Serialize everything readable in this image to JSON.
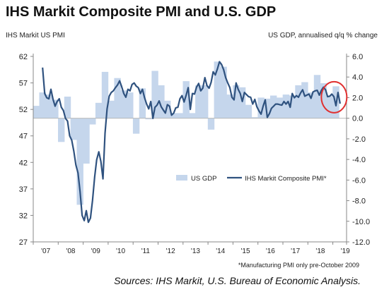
{
  "title": "IHS Markit Composite PMI and U.S. GDP",
  "left_axis_label": "IHS Markit US PMI",
  "right_axis_label": "US GDP, annualised q/q % change",
  "footnote": "*Manufacturing PMI only pre-October 2009",
  "source": "Sources: IHS Markit, U.S. Bureau of Economic Analysis.",
  "colors": {
    "gdp_bar": "#c5d6ec",
    "pmi_line": "#2f527f",
    "highlight_circle": "#e03030",
    "axis": "#888888"
  },
  "chart_data": {
    "type": "bar+line",
    "x_ticks": [
      "'07",
      "'08",
      "'09",
      "'10",
      "'11",
      "'12",
      "'13",
      "'14",
      "'15",
      "'16",
      "'17",
      "'18",
      "'19"
    ],
    "y_left": {
      "label": "IHS Markit US PMI",
      "ticks": [
        "27",
        "32",
        "37",
        "42",
        "47",
        "52",
        "57",
        "62"
      ],
      "range": [
        27,
        62
      ]
    },
    "y_right": {
      "label": "US GDP, annualised q/q % change",
      "ticks": [
        "-12.0",
        "-10.0",
        "-8.0",
        "-6.0",
        "-4.0",
        "-2.0",
        "0.0",
        "2.0",
        "4.0",
        "6.0"
      ],
      "range": [
        -12,
        6
      ]
    },
    "legend": [
      "US GDP",
      "IHS Markit Composite PMI*"
    ],
    "series": [
      {
        "name": "US GDP",
        "type": "bar",
        "axis": "right",
        "x": [
          2007.125,
          2007.375,
          2007.625,
          2007.875,
          2008.125,
          2008.375,
          2008.625,
          2008.875,
          2009.125,
          2009.375,
          2009.625,
          2009.875,
          2010.125,
          2010.375,
          2010.625,
          2010.875,
          2011.125,
          2011.375,
          2011.625,
          2011.875,
          2012.125,
          2012.375,
          2012.625,
          2012.875,
          2013.125,
          2013.375,
          2013.625,
          2013.875,
          2014.125,
          2014.375,
          2014.625,
          2014.875,
          2015.125,
          2015.375,
          2015.625,
          2015.875,
          2016.125,
          2016.375,
          2016.625,
          2016.875,
          2017.125,
          2017.375,
          2017.625,
          2017.875,
          2018.125,
          2018.375,
          2018.625,
          2018.875,
          2019.125
        ],
        "values": [
          1.2,
          2.5,
          2.3,
          1.8,
          -2.3,
          2.1,
          -2.1,
          -8.4,
          -4.4,
          -0.6,
          1.5,
          4.5,
          1.7,
          3.9,
          2.7,
          2.5,
          -1.5,
          2.9,
          -0.1,
          4.6,
          3.2,
          1.7,
          0.5,
          0.5,
          3.6,
          0.5,
          3.2,
          3.2,
          -1.1,
          5.5,
          5.0,
          2.3,
          3.2,
          3.0,
          1.3,
          0.1,
          2.0,
          1.9,
          2.2,
          2.0,
          2.3,
          2.2,
          3.2,
          3.5,
          2.5,
          4.2,
          3.4,
          2.2,
          3.1
        ]
      },
      {
        "name": "IHS Markit Composite PMI*",
        "type": "line",
        "axis": "left",
        "x": [
          2007.375,
          2007.458,
          2007.542,
          2007.625,
          2007.708,
          2007.792,
          2007.875,
          2007.958,
          2008.042,
          2008.125,
          2008.208,
          2008.292,
          2008.375,
          2008.458,
          2008.542,
          2008.625,
          2008.708,
          2008.792,
          2008.875,
          2008.958,
          2009.042,
          2009.125,
          2009.208,
          2009.292,
          2009.375,
          2009.458,
          2009.542,
          2009.625,
          2009.708,
          2009.792,
          2009.875,
          2009.958,
          2010.042,
          2010.125,
          2010.208,
          2010.292,
          2010.375,
          2010.458,
          2010.542,
          2010.625,
          2010.708,
          2010.792,
          2010.875,
          2010.958,
          2011.042,
          2011.125,
          2011.208,
          2011.292,
          2011.375,
          2011.458,
          2011.542,
          2011.625,
          2011.708,
          2011.792,
          2011.875,
          2011.958,
          2012.042,
          2012.125,
          2012.208,
          2012.292,
          2012.375,
          2012.458,
          2012.542,
          2012.625,
          2012.708,
          2012.792,
          2012.875,
          2012.958,
          2013.042,
          2013.125,
          2013.208,
          2013.292,
          2013.375,
          2013.458,
          2013.542,
          2013.625,
          2013.708,
          2013.792,
          2013.875,
          2013.958,
          2014.042,
          2014.125,
          2014.208,
          2014.292,
          2014.375,
          2014.458,
          2014.542,
          2014.625,
          2014.708,
          2014.792,
          2014.875,
          2014.958,
          2015.042,
          2015.125,
          2015.208,
          2015.292,
          2015.375,
          2015.458,
          2015.542,
          2015.625,
          2015.708,
          2015.792,
          2015.875,
          2015.958,
          2016.042,
          2016.125,
          2016.208,
          2016.292,
          2016.375,
          2016.458,
          2016.542,
          2016.625,
          2016.708,
          2016.792,
          2016.875,
          2016.958,
          2017.042,
          2017.125,
          2017.208,
          2017.292,
          2017.375,
          2017.458,
          2017.542,
          2017.625,
          2017.708,
          2017.792,
          2017.875,
          2017.958,
          2018.042,
          2018.125,
          2018.208,
          2018.292,
          2018.375,
          2018.458,
          2018.542,
          2018.625,
          2018.708,
          2018.792,
          2018.875,
          2018.958,
          2019.042,
          2019.125,
          2019.208,
          2019.292
        ],
        "values": [
          59.9,
          55.0,
          54.2,
          54.0,
          55.8,
          53.9,
          52.6,
          53.5,
          54.0,
          52.4,
          51.8,
          50.3,
          49.8,
          47.0,
          46.2,
          44.1,
          41.5,
          40.0,
          36.5,
          32.0,
          31.0,
          32.9,
          30.7,
          31.5,
          34.8,
          39.2,
          42.5,
          44.0,
          42.2,
          38.9,
          47.5,
          52.1,
          54.5,
          55.2,
          55.5,
          56.1,
          56.6,
          57.4,
          56.3,
          55.0,
          54.3,
          55.8,
          55.5,
          56.7,
          57.0,
          56.4,
          56.1,
          55.0,
          55.8,
          54.2,
          53.0,
          52.1,
          53.5,
          50.3,
          52.4,
          52.8,
          53.6,
          52.5,
          51.9,
          51.3,
          52.9,
          52.6,
          50.9,
          51.3,
          52.3,
          52.4,
          54.0,
          54.6,
          53.4,
          54.7,
          56.1,
          52.0,
          55.0,
          54.9,
          56.2,
          56.9,
          55.5,
          56.0,
          58.0,
          56.5,
          56.0,
          57.1,
          59.1,
          58.5,
          59.6,
          61.0,
          60.5,
          59.5,
          58.0,
          57.0,
          56.1,
          54.3,
          53.8,
          57.0,
          55.8,
          55.0,
          53.5,
          55.2,
          54.8,
          54.4,
          54.3,
          53.0,
          53.9,
          52.5,
          51.7,
          51.1,
          52.6,
          53.8,
          50.5,
          51.2,
          52.2,
          52.6,
          53.0,
          53.0,
          52.9,
          52.8,
          53.5,
          53.0,
          53.5,
          52.4,
          55.0,
          54.2,
          54.6,
          54.3,
          55.1,
          55.7,
          54.5,
          54.7,
          54.9,
          54.1,
          55.3,
          55.5,
          55.6,
          54.7,
          55.6,
          56.2,
          55.7,
          54.4,
          54.5,
          54.9,
          54.4,
          52.7,
          55.2,
          53.1
        ]
      }
    ],
    "annotation": "red circle highlighting early 2019 decline"
  }
}
